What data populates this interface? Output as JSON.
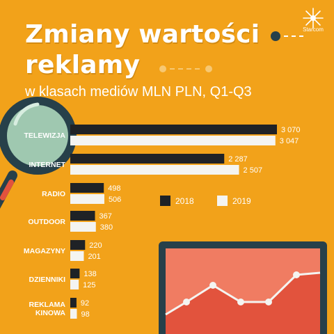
{
  "header": {
    "title_line1": "Zmiany wartości",
    "title_line2": "reklamy",
    "subtitle": "w klasach mediów MLN PLN, Q1-Q3",
    "logo_text": "Starcom"
  },
  "colors": {
    "background": "#F2A21A",
    "series_2018": "#1F2226",
    "series_2019": "#F4F4F1",
    "accent_dark": "#27404A",
    "monitor_screen": "#F07C62",
    "monitor_fill": "#E2533D"
  },
  "chart_data": {
    "type": "bar",
    "orientation": "horizontal",
    "title": "Zmiany wartości reklamy",
    "subtitle": "w klasach mediów MLN PLN, Q1-Q3",
    "categories": [
      "TELEWIZJA",
      "INTERNET",
      "RADIO",
      "OUTDOOR",
      "MAGAZYNY",
      "DZIENNIKI",
      "REKLAMA KINOWA"
    ],
    "series": [
      {
        "name": "2018",
        "values": [
          3070,
          2287,
          498,
          367,
          220,
          138,
          92
        ],
        "labels": [
          "3 070",
          "2 287",
          "498",
          "367",
          "220",
          "138",
          "92"
        ]
      },
      {
        "name": "2019",
        "values": [
          3047,
          2507,
          506,
          380,
          201,
          125,
          98
        ],
        "labels": [
          "3 047",
          "2 507",
          "506",
          "380",
          "201",
          "125",
          "98"
        ]
      }
    ],
    "legend": "middle-right",
    "grid": false
  }
}
